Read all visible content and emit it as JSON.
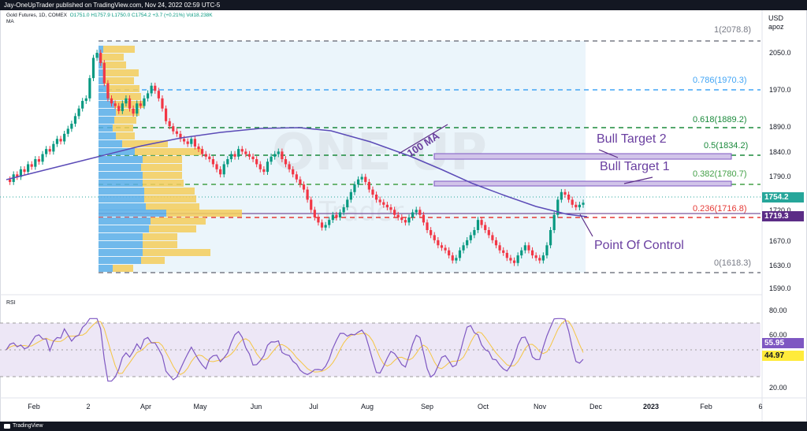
{
  "header": {
    "publish_line": "Jay-OneUpTrader published on TradingView.com, Nov 24, 2022 02:59 UTC-5"
  },
  "legend": {
    "symbol": "Gold Futures, 1D, COMEX",
    "ohlc": "O1751.0  H1757.9  L1750.0  C1754.2  +3.7 (+0.21%)  Vol18.238K",
    "indicator": "MA"
  },
  "price_axis": {
    "currency": "USD",
    "unit": "apoz",
    "ticks": [
      "2050.0",
      "1970.0",
      "1890.0",
      "1840.0",
      "1790.0",
      "1754.2",
      "1720.0",
      "1719.3",
      "1670.0",
      "1630.0",
      "1590.0"
    ]
  },
  "price_tags": {
    "last_price": "1754.2",
    "last_price_color": "#26a69a",
    "poc_price": "1719.3",
    "poc_color": "#5b2c86"
  },
  "fib_levels": [
    {
      "label": "1(2078.8)",
      "color": "#787b86"
    },
    {
      "label": "0.786(1970.3)",
      "color": "#42a5f5"
    },
    {
      "label": "0.618(1889.2)",
      "color": "#1b8a3c"
    },
    {
      "label": "0.5(1834.2)",
      "color": "#1b8a3c"
    },
    {
      "label": "0.382(1780.7)",
      "color": "#43a047"
    },
    {
      "label": "0.236(1716.8)",
      "color": "#e53935"
    },
    {
      "label": "0(1618.3)",
      "color": "#787b86"
    }
  ],
  "annotations": {
    "bull_target_2": "Bull Target 2",
    "bull_target_1": "Bull Target 1",
    "point_of_control": "Point Of Control",
    "ma_label": "100 MA"
  },
  "rsi": {
    "label": "RSI",
    "ticks": [
      "80.00",
      "60.00",
      "20.00"
    ],
    "value_1": "55.95",
    "value_1_color": "#7e57c2",
    "value_2": "44.97",
    "value_2_color": "#ffeb3b"
  },
  "time_axis": [
    "Feb",
    "2",
    "Apr",
    "May",
    "Jun",
    "Jul",
    "Aug",
    "Sep",
    "Oct",
    "Nov",
    "Dec",
    "2023",
    "Feb",
    "6"
  ],
  "footer": {
    "brand": "TradingView"
  },
  "watermark": {
    "text_1": "ONE UP",
    "text_2": "Trader"
  }
}
